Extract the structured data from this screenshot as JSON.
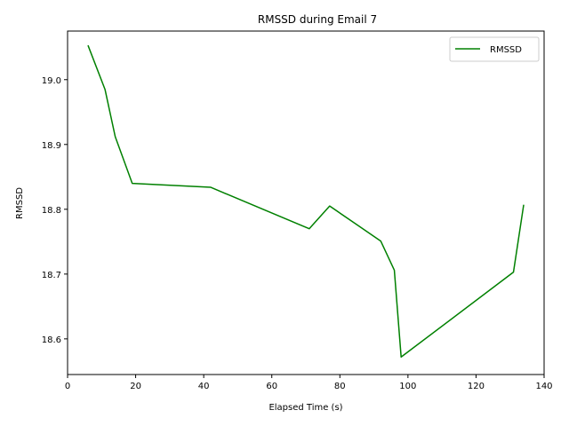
{
  "chart_data": {
    "type": "line",
    "title": "RMSSD during Email 7",
    "xlabel": "Elapsed Time (s)",
    "ylabel": "RMSSD",
    "xlim": [
      0,
      140
    ],
    "ylim": [
      18.545,
      19.075
    ],
    "xticks": [
      0,
      20,
      40,
      60,
      80,
      100,
      120,
      140
    ],
    "yticks": [
      18.6,
      18.7,
      18.8,
      18.9,
      19.0
    ],
    "ytick_labels": [
      "18.6",
      "18.7",
      "18.8",
      "18.9",
      "19.0"
    ],
    "grid": false,
    "legend_position": "top-right",
    "series": [
      {
        "name": "RMSSD",
        "color": "#008000",
        "x": [
          6,
          11,
          14,
          19,
          42,
          71,
          77,
          92,
          96,
          98,
          131,
          134
        ],
        "y": [
          19.053,
          18.985,
          18.912,
          18.84,
          18.834,
          18.77,
          18.805,
          18.751,
          18.706,
          18.572,
          18.703,
          18.807
        ]
      }
    ]
  }
}
